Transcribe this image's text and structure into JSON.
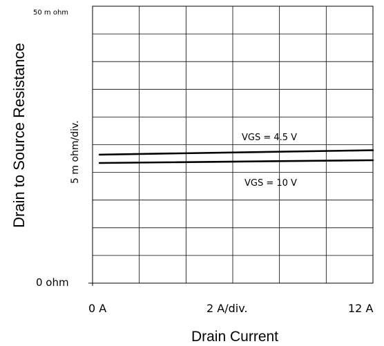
{
  "chart_data": {
    "type": "line",
    "xlabel": "Drain Current",
    "ylabel": "Drain to Source Resistance",
    "x_tick_labels": {
      "start": "0  A",
      "middle": "2  A/div.",
      "end": "12  A"
    },
    "y_tick_labels": {
      "top": "50 m ohm",
      "middle": "5 m ohm/div.",
      "bottom": "0  ohm"
    },
    "xlim": [
      0,
      12
    ],
    "ylim": [
      0,
      50
    ],
    "grid": true,
    "x_divisions": 6,
    "y_divisions": 10,
    "series": [
      {
        "name": "VGS = 4.5 V",
        "x": [
          0.3,
          12
        ],
        "y": [
          23.2,
          24.0
        ]
      },
      {
        "name": "VGS = 10 V",
        "x": [
          0.3,
          12
        ],
        "y": [
          21.7,
          22.2
        ]
      }
    ],
    "colors": {
      "grid": "#000000",
      "series": "#000000",
      "background": "#ffffff"
    }
  }
}
